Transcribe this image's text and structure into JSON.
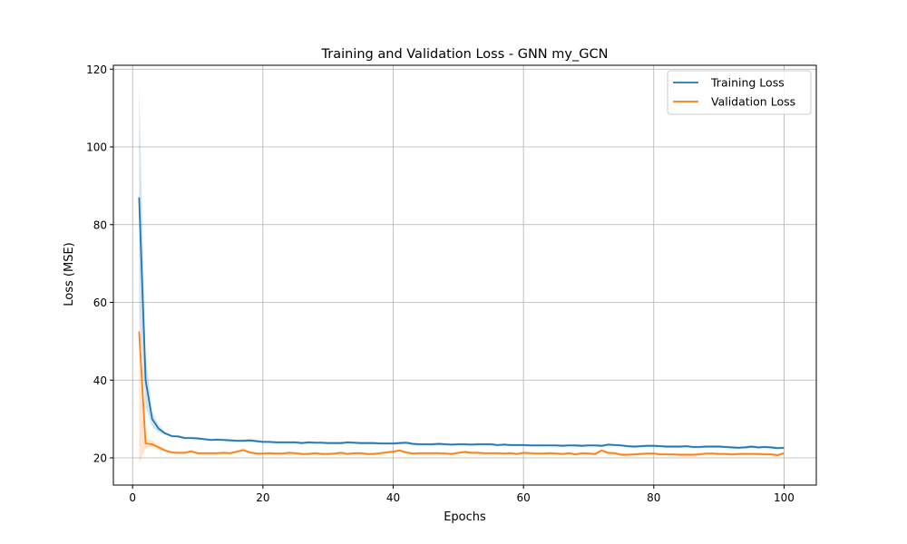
{
  "chart_data": {
    "type": "line",
    "title": "Training and Validation Loss - GNN my_GCN",
    "xlabel": "Epochs",
    "ylabel": "Loss (MSE)",
    "xlim": [
      -2.95,
      104.95
    ],
    "ylim": [
      13.0,
      121.0
    ],
    "xticks": [
      0,
      20,
      40,
      60,
      80,
      100
    ],
    "yticks": [
      20,
      40,
      60,
      80,
      100,
      120
    ],
    "grid": true,
    "legend_position": "top-right",
    "series": [
      {
        "name": "Training Loss",
        "color": "#1f77b4",
        "x": [
          1,
          2,
          3,
          4,
          5,
          6,
          7,
          8,
          9,
          10,
          11,
          12,
          13,
          14,
          15,
          16,
          17,
          18,
          19,
          20,
          21,
          22,
          23,
          24,
          25,
          26,
          27,
          28,
          29,
          30,
          31,
          32,
          33,
          34,
          35,
          36,
          37,
          38,
          39,
          40,
          41,
          42,
          43,
          44,
          45,
          46,
          47,
          48,
          49,
          50,
          51,
          52,
          53,
          54,
          55,
          56,
          57,
          58,
          59,
          60,
          61,
          62,
          63,
          64,
          65,
          66,
          67,
          68,
          69,
          70,
          71,
          72,
          73,
          74,
          75,
          76,
          77,
          78,
          79,
          80,
          81,
          82,
          83,
          84,
          85,
          86,
          87,
          88,
          89,
          90,
          91,
          92,
          93,
          94,
          95,
          96,
          97,
          98,
          99,
          100
        ],
        "y": [
          87.0,
          40.0,
          30.0,
          27.5,
          26.3,
          25.6,
          25.5,
          25.1,
          25.1,
          25.0,
          24.8,
          24.6,
          24.7,
          24.6,
          24.5,
          24.4,
          24.4,
          24.5,
          24.3,
          24.1,
          24.1,
          24.0,
          24.0,
          24.0,
          24.0,
          23.8,
          24.0,
          23.9,
          23.9,
          23.8,
          23.8,
          23.8,
          24.0,
          23.9,
          23.8,
          23.8,
          23.8,
          23.7,
          23.7,
          23.7,
          23.8,
          23.9,
          23.6,
          23.5,
          23.5,
          23.5,
          23.6,
          23.5,
          23.4,
          23.5,
          23.5,
          23.4,
          23.5,
          23.5,
          23.5,
          23.3,
          23.4,
          23.3,
          23.3,
          23.3,
          23.2,
          23.2,
          23.2,
          23.2,
          23.2,
          23.1,
          23.2,
          23.2,
          23.1,
          23.2,
          23.2,
          23.1,
          23.4,
          23.3,
          23.2,
          23.0,
          22.9,
          23.0,
          23.1,
          23.1,
          23.0,
          22.9,
          22.9,
          22.9,
          23.0,
          22.8,
          22.8,
          22.9,
          22.9,
          22.9,
          22.8,
          22.7,
          22.6,
          22.7,
          22.9,
          22.7,
          22.8,
          22.7,
          22.5,
          22.6
        ],
        "band": [
          [
            58.0,
            116.0
          ],
          [
            33.0,
            47.0
          ],
          [
            28.0,
            32.0
          ],
          [
            26.5,
            28.5
          ]
        ]
      },
      {
        "name": "Validation Loss",
        "color": "#ff7f0e",
        "x": [
          1,
          2,
          3,
          4,
          5,
          6,
          7,
          8,
          9,
          10,
          11,
          12,
          13,
          14,
          15,
          16,
          17,
          18,
          19,
          20,
          21,
          22,
          23,
          24,
          25,
          26,
          27,
          28,
          29,
          30,
          31,
          32,
          33,
          34,
          35,
          36,
          37,
          38,
          39,
          40,
          41,
          42,
          43,
          44,
          45,
          46,
          47,
          48,
          49,
          50,
          51,
          52,
          53,
          54,
          55,
          56,
          57,
          58,
          59,
          60,
          61,
          62,
          63,
          64,
          65,
          66,
          67,
          68,
          69,
          70,
          71,
          72,
          73,
          74,
          75,
          76,
          77,
          78,
          79,
          80,
          81,
          82,
          83,
          84,
          85,
          86,
          87,
          88,
          89,
          90,
          91,
          92,
          93,
          94,
          95,
          96,
          97,
          98,
          99,
          100
        ],
        "y": [
          52.5,
          23.7,
          23.5,
          22.7,
          21.9,
          21.4,
          21.3,
          21.3,
          21.7,
          21.2,
          21.2,
          21.2,
          21.2,
          21.3,
          21.2,
          21.6,
          22.0,
          21.4,
          21.1,
          21.1,
          21.2,
          21.1,
          21.1,
          21.3,
          21.2,
          21.0,
          21.0,
          21.2,
          21.0,
          21.0,
          21.1,
          21.3,
          21.0,
          21.2,
          21.2,
          21.0,
          21.0,
          21.2,
          21.4,
          21.6,
          21.9,
          21.4,
          21.1,
          21.2,
          21.2,
          21.2,
          21.2,
          21.1,
          21.0,
          21.3,
          21.5,
          21.3,
          21.3,
          21.2,
          21.2,
          21.2,
          21.1,
          21.2,
          21.0,
          21.3,
          21.2,
          21.1,
          21.1,
          21.2,
          21.1,
          21.0,
          21.2,
          20.9,
          21.2,
          21.1,
          21.0,
          21.9,
          21.3,
          21.2,
          20.8,
          20.8,
          20.9,
          21.0,
          21.1,
          21.1,
          20.9,
          20.9,
          20.9,
          20.8,
          20.8,
          20.8,
          20.9,
          21.1,
          21.1,
          21.0,
          21.0,
          20.9,
          21.0,
          21.0,
          21.0,
          21.0,
          20.9,
          20.9,
          20.7,
          21.2
        ],
        "band": [
          [
            18.5,
            58.0
          ],
          [
            22.5,
            25.0
          ],
          [
            22.6,
            24.5
          ],
          [
            22.0,
            23.4
          ]
        ]
      }
    ]
  }
}
